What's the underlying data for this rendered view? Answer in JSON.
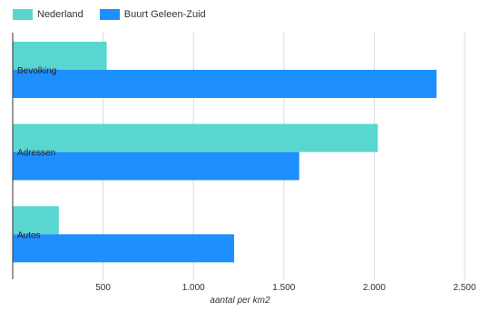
{
  "chart_data": {
    "type": "bar",
    "orientation": "horizontal",
    "categories": [
      "Bevolking",
      "Adressen",
      "Autos"
    ],
    "series": [
      {
        "name": "Nederland",
        "color": "#5ad6d0",
        "values": [
          520,
          2020,
          255
        ]
      },
      {
        "name": "Buurt Geleen-Zuid",
        "color": "#1e8fff",
        "values": [
          2345,
          1585,
          1225
        ]
      }
    ],
    "xlabel": "aantal per km2",
    "ylabel": "",
    "xlim": [
      0,
      2550
    ],
    "xticks": [
      {
        "value": 500,
        "label": "500"
      },
      {
        "value": 1000,
        "label": "1.000"
      },
      {
        "value": 1500,
        "label": "1.500"
      },
      {
        "value": 2000,
        "label": "2.000"
      },
      {
        "value": 2500,
        "label": "2.500"
      }
    ],
    "grid": true,
    "legend_position": "top-left"
  }
}
